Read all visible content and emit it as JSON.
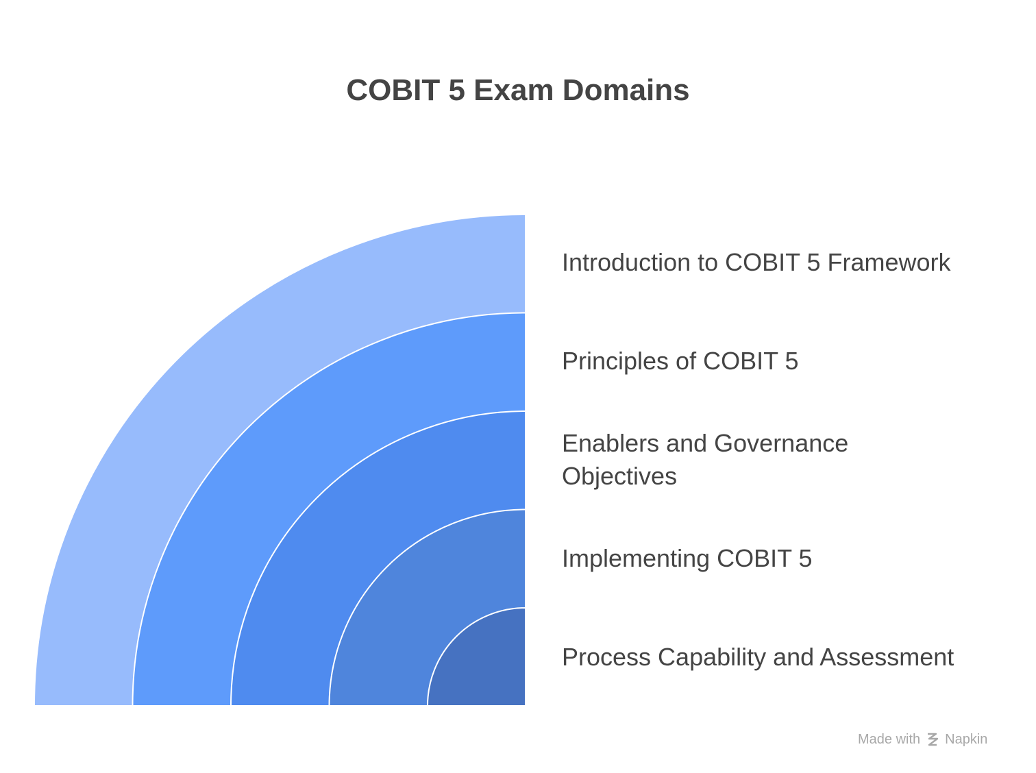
{
  "header": {
    "title": "COBIT 5 Exam Domains"
  },
  "items": [
    {
      "label": "Introduction to COBIT 5 Framework",
      "color": "#97bbfc"
    },
    {
      "label": "Principles of COBIT 5",
      "color": "#5e9bfb"
    },
    {
      "label": "Enablers and Governance Objectives",
      "color": "#4f8bef"
    },
    {
      "label": "Implementing COBIT 5",
      "color": "#4f85dc"
    },
    {
      "label": "Process Capability and Assessment",
      "color": "#4672c1"
    }
  ],
  "footer": {
    "prefix": "Made with",
    "brand": "Napkin"
  }
}
